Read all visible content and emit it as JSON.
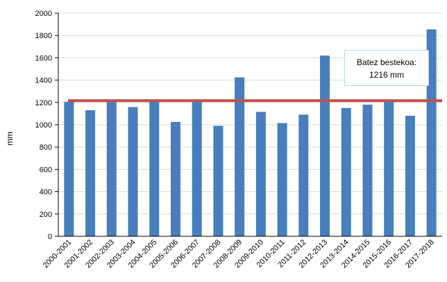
{
  "chart_data": {
    "type": "bar",
    "ylabel": "mm",
    "xlabel": "",
    "ylim": [
      0,
      2000
    ],
    "yticks": [
      0,
      200,
      400,
      600,
      800,
      1000,
      1200,
      1400,
      1600,
      1800,
      2000
    ],
    "grid": true,
    "categories": [
      "2000-2001",
      "2001-2002",
      "2002-2003",
      "2003-2004",
      "2004-2005",
      "2005-2006",
      "2006-2007",
      "2007-2008",
      "2008-2009",
      "2009-2010",
      "2010-2011",
      "2011-2012",
      "2012-2013",
      "2013-2014",
      "2014-2015",
      "2015-2016",
      "2016-2017",
      "2017-2018"
    ],
    "values": [
      1205,
      1130,
      1205,
      1158,
      1210,
      1025,
      1215,
      990,
      1425,
      1115,
      1015,
      1090,
      1620,
      1150,
      1180,
      1215,
      1080,
      1855
    ],
    "bar_color": "#4a7ebb",
    "reference_line": {
      "value": 1216,
      "color": "#c0504d"
    },
    "annotation": {
      "line1": "Batez bestekoa:",
      "line2": "1216 mm"
    }
  }
}
